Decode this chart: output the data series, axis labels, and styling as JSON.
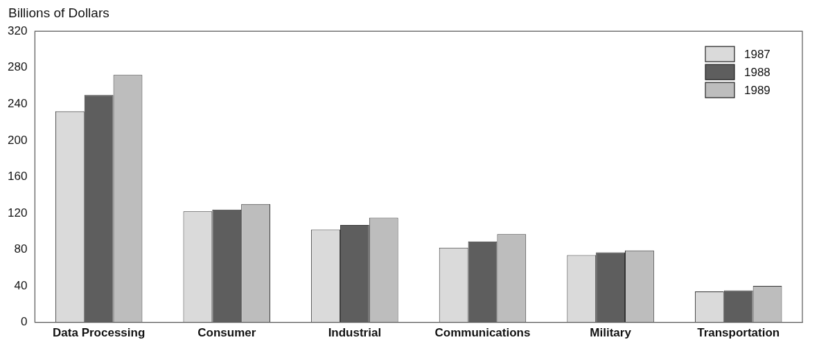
{
  "chart_data": {
    "type": "bar",
    "ylabel": "Billions of Dollars",
    "categories": [
      "Data Processing",
      "Consumer",
      "Industrial",
      "Communications",
      "Military",
      "Transportation"
    ],
    "series": [
      {
        "name": "1987",
        "color": "#dadada",
        "values": [
          232,
          122,
          102,
          82,
          74,
          34
        ]
      },
      {
        "name": "1988",
        "color": "#5e5e5e",
        "values": [
          250,
          124,
          107,
          89,
          77,
          35
        ]
      },
      {
        "name": "1989",
        "color": "#bdbdbd",
        "values": [
          272,
          130,
          115,
          97,
          79,
          40
        ]
      }
    ],
    "ylim": [
      0,
      320
    ],
    "yticks": [
      0,
      40,
      80,
      120,
      160,
      200,
      240,
      280,
      320
    ],
    "grid": false,
    "legend": "top right"
  }
}
